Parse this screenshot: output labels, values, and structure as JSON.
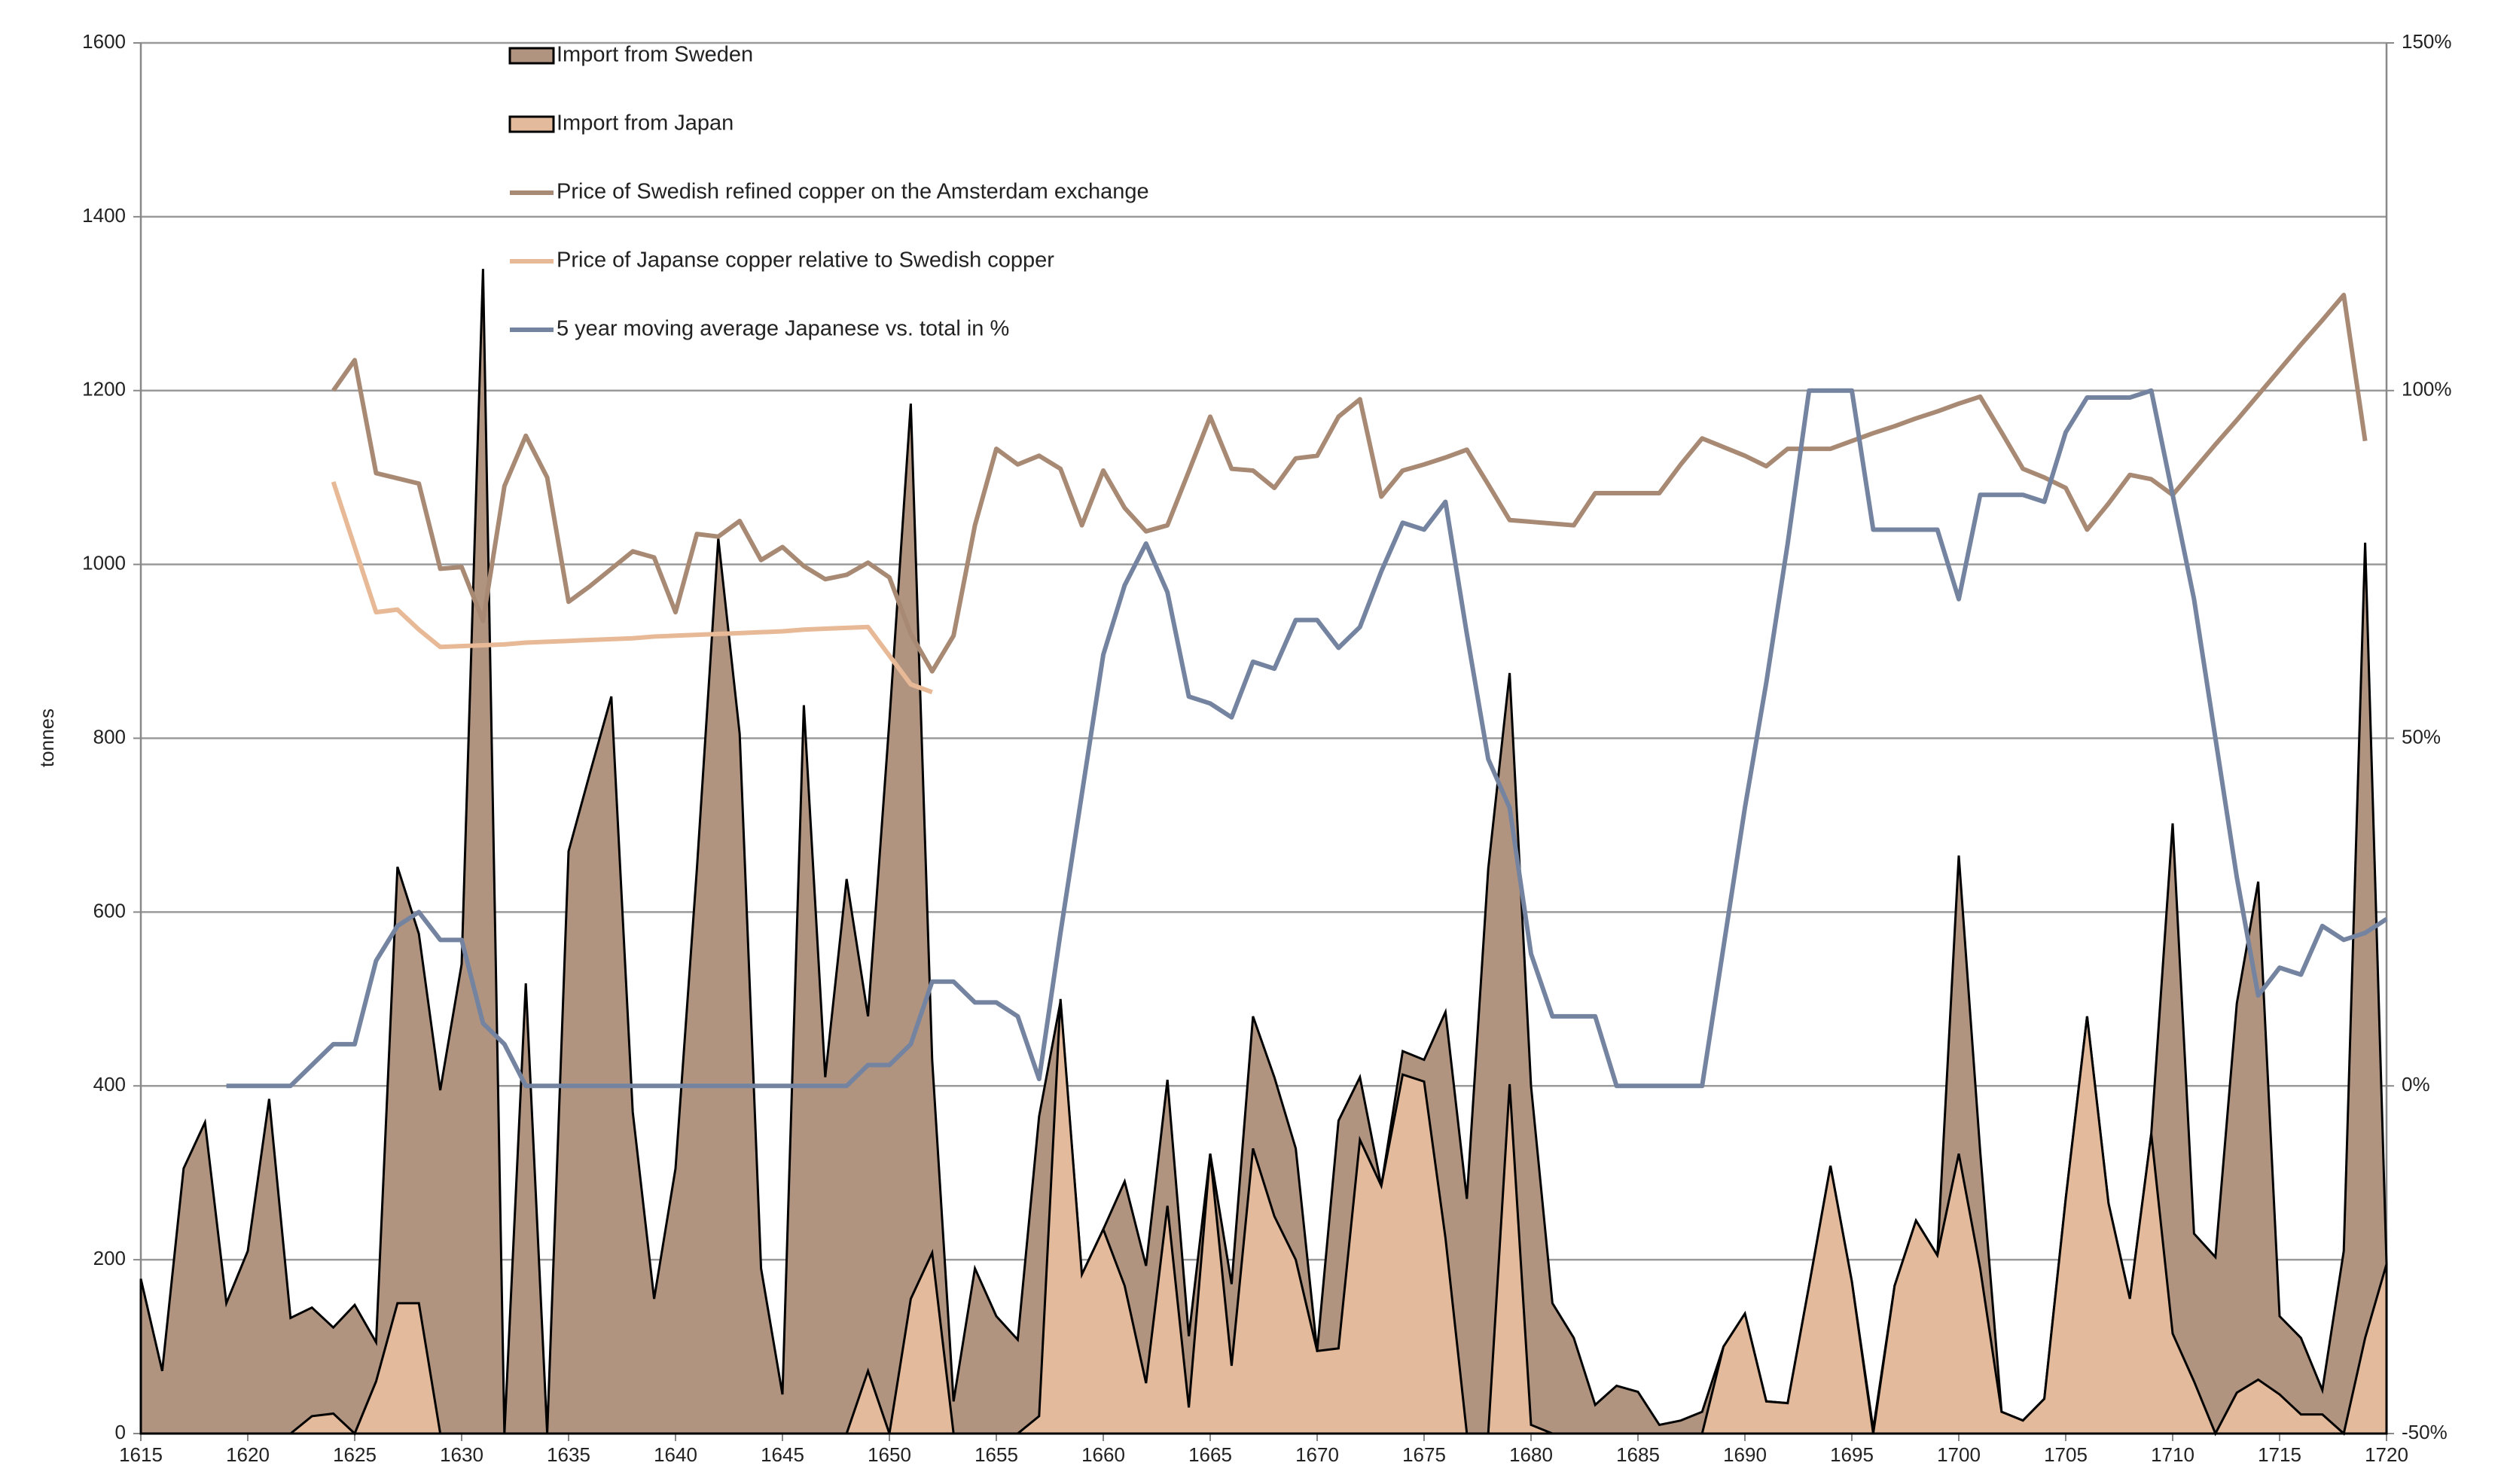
{
  "chart_data": {
    "type": "area",
    "y_label": "tonnes",
    "x": [
      1615,
      1616,
      1617,
      1618,
      1619,
      1620,
      1621,
      1622,
      1623,
      1624,
      1625,
      1626,
      1627,
      1628,
      1629,
      1630,
      1631,
      1632,
      1633,
      1634,
      1635,
      1636,
      1637,
      1638,
      1639,
      1640,
      1641,
      1642,
      1643,
      1644,
      1645,
      1646,
      1647,
      1648,
      1649,
      1650,
      1651,
      1652,
      1653,
      1654,
      1655,
      1656,
      1657,
      1658,
      1659,
      1660,
      1661,
      1662,
      1663,
      1664,
      1665,
      1666,
      1667,
      1668,
      1669,
      1670,
      1671,
      1672,
      1673,
      1674,
      1675,
      1676,
      1677,
      1678,
      1679,
      1680,
      1681,
      1682,
      1683,
      1684,
      1685,
      1686,
      1687,
      1688,
      1689,
      1690,
      1691,
      1692,
      1693,
      1694,
      1695,
      1696,
      1697,
      1698,
      1699,
      1700,
      1701,
      1702,
      1703,
      1704,
      1705,
      1706,
      1707,
      1708,
      1709,
      1710,
      1711,
      1712,
      1713,
      1714,
      1715,
      1716,
      1717,
      1718,
      1719,
      1720
    ],
    "xlim": [
      1615,
      1720
    ],
    "xticks": [
      1615,
      1620,
      1625,
      1630,
      1635,
      1640,
      1645,
      1650,
      1655,
      1660,
      1665,
      1670,
      1675,
      1680,
      1685,
      1690,
      1695,
      1700,
      1705,
      1710,
      1715,
      1720
    ],
    "ylim": [
      0,
      1600
    ],
    "yticks": [
      0,
      200,
      400,
      600,
      800,
      1000,
      1200,
      1400,
      1600
    ],
    "y2lim": [
      -50,
      150
    ],
    "y2ticks": [
      {
        "value": -50,
        "label": "-50%"
      },
      {
        "value": 0,
        "label": "0%"
      },
      {
        "value": 50,
        "label": "50%"
      },
      {
        "value": 100,
        "label": "100%"
      },
      {
        "value": 150,
        "label": "150%"
      }
    ],
    "grid": true,
    "legend": "top",
    "series": [
      {
        "name": "Import from Sweden",
        "kind": "area",
        "color": "#b09480",
        "values": [
          178,
          72,
          305,
          358,
          150,
          210,
          385,
          133,
          145,
          122,
          148,
          105,
          652,
          575,
          395,
          540,
          1340,
          0,
          518,
          0,
          670,
          760,
          848,
          370,
          155,
          305,
          650,
          1030,
          805,
          190,
          45,
          838,
          410,
          638,
          480,
          820,
          1185,
          430,
          37,
          190,
          135,
          108,
          365,
          497,
          183,
          235,
          290,
          193,
          407,
          112,
          322,
          172,
          480,
          410,
          328,
          95,
          360,
          410,
          285,
          440,
          430,
          485,
          270,
          650,
          875,
          400,
          150,
          110,
          33,
          55,
          48,
          10,
          15,
          25,
          100,
          138,
          37,
          35,
          170,
          308,
          175,
          5,
          170,
          245,
          205,
          665,
          325,
          25,
          15,
          40,
          270,
          480,
          265,
          155,
          345,
          702,
          230,
          203,
          495,
          635,
          135,
          110,
          50,
          210,
          1025,
          195
        ]
      },
      {
        "name": "Import from Japan",
        "kind": "area",
        "color": "#e3ba9b",
        "values": [
          0,
          0,
          0,
          0,
          0,
          0,
          0,
          0,
          20,
          23,
          0,
          60,
          150,
          150,
          0,
          0,
          0,
          0,
          0,
          0,
          0,
          0,
          0,
          0,
          0,
          0,
          0,
          0,
          0,
          0,
          0,
          0,
          0,
          0,
          72,
          0,
          155,
          208,
          0,
          0,
          0,
          0,
          20,
          500,
          183,
          235,
          170,
          58,
          262,
          30,
          322,
          78,
          328,
          250,
          200,
          95,
          98,
          338,
          285,
          413,
          405,
          225,
          0,
          0,
          402,
          10,
          0,
          0,
          0,
          0,
          0,
          0,
          0,
          0,
          100,
          138,
          37,
          35,
          170,
          308,
          175,
          0,
          170,
          245,
          205,
          322,
          190,
          25,
          15,
          40,
          270,
          480,
          265,
          155,
          345,
          115,
          60,
          0,
          47,
          62,
          45,
          22,
          22,
          0,
          110,
          195
        ]
      },
      {
        "name": "Price of Swedish refined copper on the Amsterdam exchange",
        "kind": "line",
        "color": "#a88a74",
        "values": [
          null,
          null,
          null,
          null,
          null,
          null,
          null,
          null,
          null,
          1200,
          1235,
          1105,
          1099,
          1093,
          995,
          997,
          935,
          1090,
          1148,
          1100,
          957,
          975,
          995,
          1015,
          1008,
          945,
          1035,
          1032,
          1050,
          1005,
          1020,
          998,
          983,
          988,
          1002,
          985,
          920,
          877,
          918,
          1045,
          1133,
          1115,
          1125,
          1110,
          1045,
          1108,
          1065,
          1038,
          1045,
          1107,
          1170,
          1110,
          1108,
          1088,
          1122,
          1125,
          1170,
          1190,
          1078,
          1108,
          1115,
          1123,
          1132,
          1092,
          1051,
          1049,
          1047,
          1045,
          1082,
          1082,
          1082,
          1082,
          1115,
          1145,
          1135,
          1125,
          1113,
          1133,
          1133,
          1133,
          1142,
          1151,
          1159,
          1168,
          1176,
          1185,
          1193,
          1152,
          1110,
          1100,
          1088,
          1040,
          1070,
          1103,
          1098,
          1080,
          1109,
          1138,
          1166,
          1195,
          1224,
          1253,
          1281,
          1310,
          1142,
          null
        ]
      },
      {
        "name": "Price of Japanse copper relative to Swedish copper",
        "kind": "line",
        "color": "#e8b996",
        "values": [
          null,
          null,
          null,
          null,
          null,
          null,
          null,
          null,
          null,
          1095,
          1020,
          945,
          948,
          925,
          905,
          906,
          907,
          908,
          910,
          911,
          912,
          913,
          914,
          915,
          917,
          918,
          919,
          920,
          921,
          922,
          923,
          925,
          926,
          927,
          928,
          895,
          862,
          853,
          null,
          null,
          null,
          null,
          null,
          null,
          null,
          null,
          null,
          null,
          null,
          null,
          null,
          null,
          null,
          null,
          null,
          null,
          null,
          null,
          null,
          null,
          null,
          null,
          null,
          null,
          null,
          null,
          null,
          null,
          null,
          null,
          null,
          null,
          null,
          null,
          null,
          null,
          null,
          null,
          null,
          null,
          null,
          null,
          null,
          null,
          null,
          null,
          null,
          null,
          null,
          null,
          null,
          null,
          null,
          null,
          null,
          null,
          null,
          null,
          null,
          null,
          null,
          null,
          null,
          null,
          null,
          null
        ]
      },
      {
        "name": "5 year moving average Japanese vs. total in %",
        "kind": "line",
        "axis": "y2",
        "color": "#7484a0",
        "values": [
          null,
          null,
          null,
          null,
          0,
          0,
          0,
          0,
          3,
          6,
          6,
          18,
          23,
          25,
          21,
          21,
          9,
          6,
          0,
          0,
          0,
          0,
          0,
          0,
          0,
          0,
          0,
          0,
          0,
          0,
          0,
          0,
          0,
          0,
          3,
          3,
          6,
          15,
          15,
          12,
          12,
          10,
          1,
          22,
          42,
          62,
          72,
          78,
          71,
          56,
          55,
          53,
          61,
          60,
          67,
          67,
          63,
          66,
          74,
          81,
          80,
          84,
          65,
          47,
          40,
          19,
          10,
          10,
          10,
          0,
          0,
          0,
          0,
          0,
          20,
          40,
          58,
          78,
          100,
          100,
          100,
          80,
          80,
          80,
          80,
          70,
          85,
          85,
          85,
          84,
          94,
          99,
          99,
          99,
          100,
          85,
          70,
          50,
          30,
          13,
          17,
          16,
          23,
          21,
          22,
          24
        ]
      }
    ]
  }
}
